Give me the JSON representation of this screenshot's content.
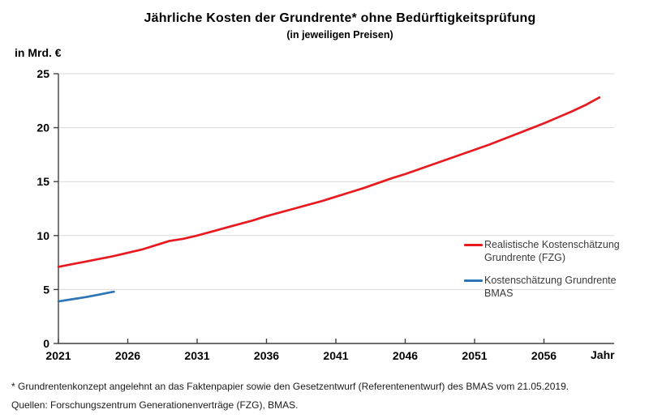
{
  "header": {
    "title": "Jährliche Kosten der Grundrente* ohne Bedürftigkeitsprüfung",
    "subtitle": "(in jeweiligen Preisen)"
  },
  "chart_data": {
    "type": "line",
    "title": "Jährliche Kosten der Grundrente* ohne Bedürftigkeitsprüfung",
    "subtitle": "(in jeweiligen Preisen)",
    "y_axis_label": "in Mrd. €",
    "x_axis_label": "Jahr",
    "ylim": [
      0,
      25
    ],
    "y_ticks": [
      0,
      5,
      10,
      15,
      20,
      25
    ],
    "x_ticks": [
      2021,
      2026,
      2031,
      2036,
      2041,
      2046,
      2051,
      2056
    ],
    "xlim": [
      2021,
      2061
    ],
    "grid": true,
    "legend_position": "right",
    "axis_color": "#404040",
    "gridline_color": "#d9d9d9",
    "series": [
      {
        "name": "Realistische Kostenschätzung Grundrente (FZG)",
        "color": "#e8191f",
        "x": [
          2021,
          2022,
          2023,
          2024,
          2025,
          2026,
          2027,
          2028,
          2029,
          2030,
          2031,
          2032,
          2033,
          2034,
          2035,
          2036,
          2037,
          2038,
          2039,
          2040,
          2041,
          2042,
          2043,
          2044,
          2045,
          2046,
          2047,
          2048,
          2049,
          2050,
          2051,
          2052,
          2053,
          2054,
          2055,
          2056,
          2057,
          2058,
          2059,
          2060
        ],
        "values": [
          7.1,
          7.35,
          7.6,
          7.85,
          8.1,
          8.4,
          8.7,
          9.1,
          9.5,
          9.7,
          10.0,
          10.35,
          10.7,
          11.05,
          11.4,
          11.8,
          12.15,
          12.5,
          12.85,
          13.2,
          13.6,
          14.0,
          14.4,
          14.85,
          15.3,
          15.7,
          16.15,
          16.6,
          17.05,
          17.5,
          17.95,
          18.4,
          18.9,
          19.4,
          19.9,
          20.4,
          20.95,
          21.5,
          22.1,
          22.8
        ]
      },
      {
        "name": "Kostenschätzung Grundrente BMAS",
        "color": "#2e75b6",
        "x": [
          2021,
          2022,
          2023,
          2024,
          2025
        ],
        "values": [
          3.9,
          4.1,
          4.3,
          4.55,
          4.8
        ]
      }
    ],
    "legend": [
      {
        "line1": "Realistische Kostenschätzung",
        "line2": "Grundrente (FZG)",
        "color": "#e8191f"
      },
      {
        "line1": "Kostenschätzung Grundrente",
        "line2": "BMAS",
        "color": "#2e75b6"
      }
    ]
  },
  "footnotes": {
    "note": "* Grundrentenkonzept angelehnt an das Faktenpapier sowie den Gesetzentwurf (Referentenentwurf) des BMAS vom 21.05.2019.",
    "sources": "Quellen: Forschungszentrum Generationenverträge (FZG), BMAS."
  }
}
